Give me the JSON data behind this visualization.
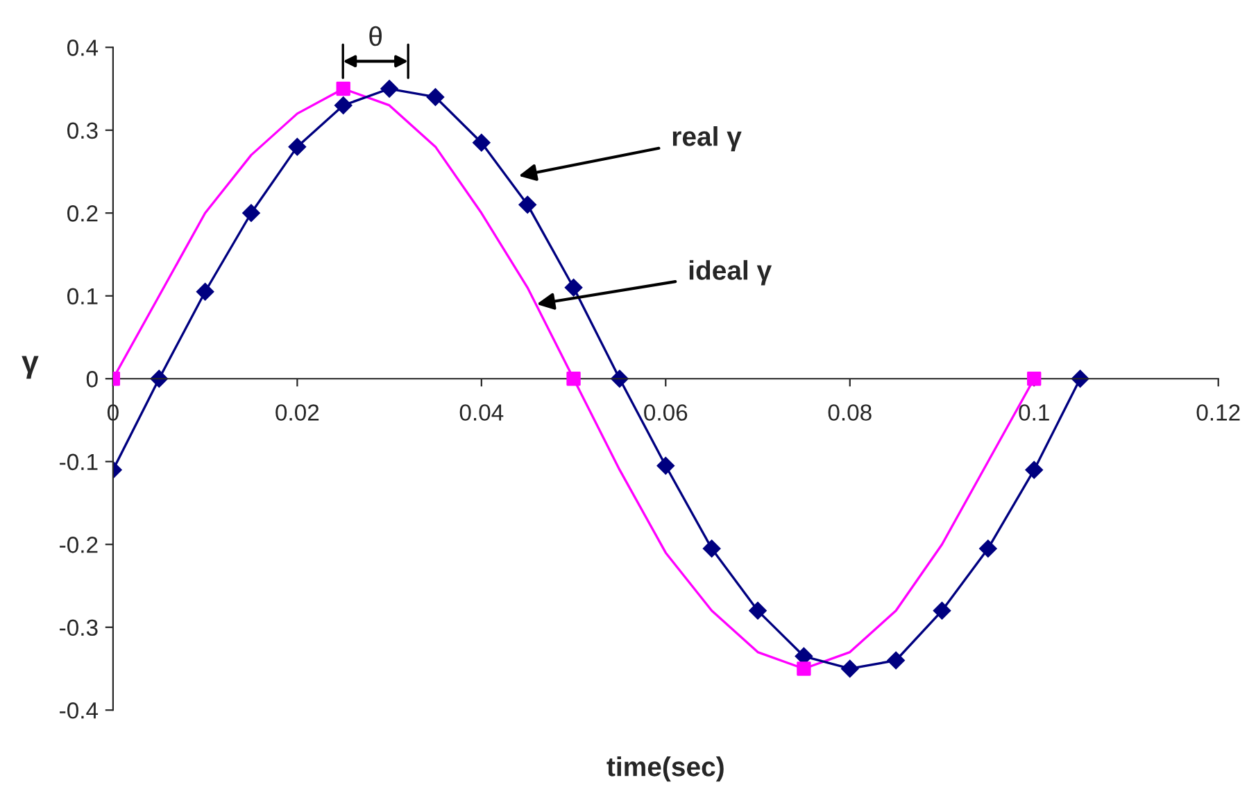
{
  "chart_data": {
    "type": "line",
    "xlabel": "time(sec)",
    "ylabel": "γ",
    "xlim": [
      0,
      0.12
    ],
    "xticks": [
      0,
      0.02,
      0.04,
      0.06,
      0.08,
      0.1,
      0.12
    ],
    "ylim": [
      -0.4,
      0.4
    ],
    "yticks": [
      -0.4,
      -0.3,
      -0.2,
      -0.1,
      0,
      0.1,
      0.2,
      0.3,
      0.4
    ],
    "grid": false,
    "legend": false,
    "series": [
      {
        "color": "#ff00ff",
        "marker": "none",
        "x": [
          0,
          0.005,
          0.01,
          0.015,
          0.02,
          0.025,
          0.03,
          0.035,
          0.04,
          0.045,
          0.05,
          0.055,
          0.06,
          0.065,
          0.07,
          0.075,
          0.08,
          0.085,
          0.09,
          0.095,
          0.1
        ],
        "values": [
          0,
          0.1,
          0.2,
          0.27,
          0.32,
          0.35,
          0.33,
          0.28,
          0.2,
          0.11,
          0,
          -0.11,
          -0.21,
          -0.28,
          -0.33,
          -0.35,
          -0.33,
          -0.28,
          -0.2,
          -0.1,
          0
        ]
      },
      {
        "type": "scatter",
        "color": "#ff00ff",
        "marker": "square",
        "x": [
          0,
          0.025,
          0.05,
          0.075,
          0.1
        ],
        "values": [
          0,
          0.35,
          0,
          -0.35,
          0
        ]
      },
      {
        "color": "#000080",
        "marker": "diamond",
        "x": [
          0,
          0.005,
          0.01,
          0.015,
          0.02,
          0.025,
          0.03,
          0.035,
          0.04,
          0.045,
          0.05,
          0.055,
          0.06,
          0.065,
          0.07,
          0.075,
          0.08,
          0.085,
          0.09,
          0.095,
          0.1,
          0.105
        ],
        "values": [
          -0.11,
          0,
          0.105,
          0.2,
          0.28,
          0.33,
          0.35,
          0.34,
          0.285,
          0.21,
          0.11,
          0,
          -0.105,
          -0.205,
          -0.28,
          -0.335,
          -0.35,
          -0.34,
          -0.28,
          -0.205,
          -0.11,
          0
        ]
      }
    ],
    "annotations": [
      "real γ",
      {
        "text": "ideal γ",
        "x": 0.046,
        "y": 0.09
      },
      "θ"
    ]
  }
}
